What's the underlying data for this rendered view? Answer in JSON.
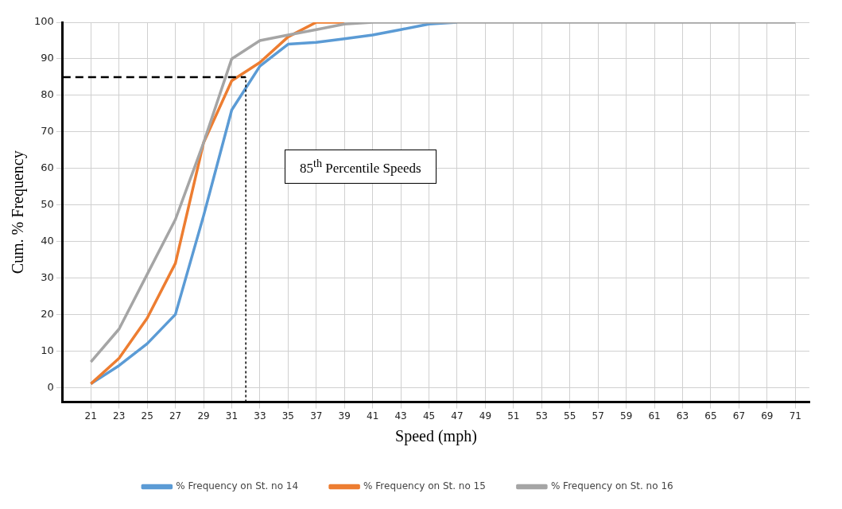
{
  "chart_data": {
    "type": "line",
    "xlabel": "Speed (mph)",
    "ylabel": "Cum. % Frequency",
    "x": [
      21,
      23,
      25,
      27,
      29,
      31,
      33,
      35,
      37,
      39,
      41,
      43,
      45,
      47,
      49,
      51,
      53,
      55,
      57,
      59,
      61,
      63,
      65,
      67,
      69,
      71
    ],
    "xlim": [
      19,
      72
    ],
    "xticks": [
      21,
      23,
      25,
      27,
      29,
      31,
      33,
      35,
      37,
      39,
      41,
      43,
      45,
      47,
      49,
      51,
      53,
      55,
      57,
      59,
      61,
      63,
      65,
      67,
      69,
      71
    ],
    "ylim": [
      -4,
      100
    ],
    "yticks": [
      0,
      10,
      20,
      30,
      40,
      50,
      60,
      70,
      80,
      90,
      100
    ],
    "series": [
      {
        "name": "% Frequency on St. no 14",
        "color": "#5b9bd5",
        "values": [
          1,
          6,
          12,
          20,
          47,
          76,
          88,
          94,
          94.5,
          95.5,
          96.5,
          98,
          99.5,
          100,
          null,
          null,
          null,
          null,
          null,
          null,
          null,
          null,
          null,
          null,
          null,
          null
        ]
      },
      {
        "name": "% Frequency on St. no 15",
        "color": "#ed7d31",
        "values": [
          1,
          8,
          19,
          34,
          67,
          84,
          89,
          96,
          100,
          100,
          null,
          null,
          null,
          null,
          null,
          null,
          null,
          null,
          null,
          null,
          null,
          null,
          null,
          null,
          null,
          null
        ]
      },
      {
        "name": "% Frequency on St. no 16",
        "color": "#a5a5a5",
        "values": [
          7,
          16,
          31,
          46,
          67,
          90,
          95,
          96.5,
          98,
          99.5,
          100,
          100,
          100,
          100,
          100,
          100,
          100,
          100,
          100,
          100,
          100,
          100,
          100,
          100,
          100,
          100
        ]
      }
    ],
    "ref_lines": [
      {
        "axis": "y",
        "value": 85,
        "color": "#000000",
        "line_style": "dashed"
      },
      {
        "axis": "x",
        "value": 32,
        "color": "#000000",
        "line_style": "dotted"
      }
    ],
    "annotations": [
      "85$^{th}$ Percentile Speeds"
    ],
    "grid": true,
    "legend": "bottom",
    "marker": "none",
    "line_style": "solid"
  }
}
